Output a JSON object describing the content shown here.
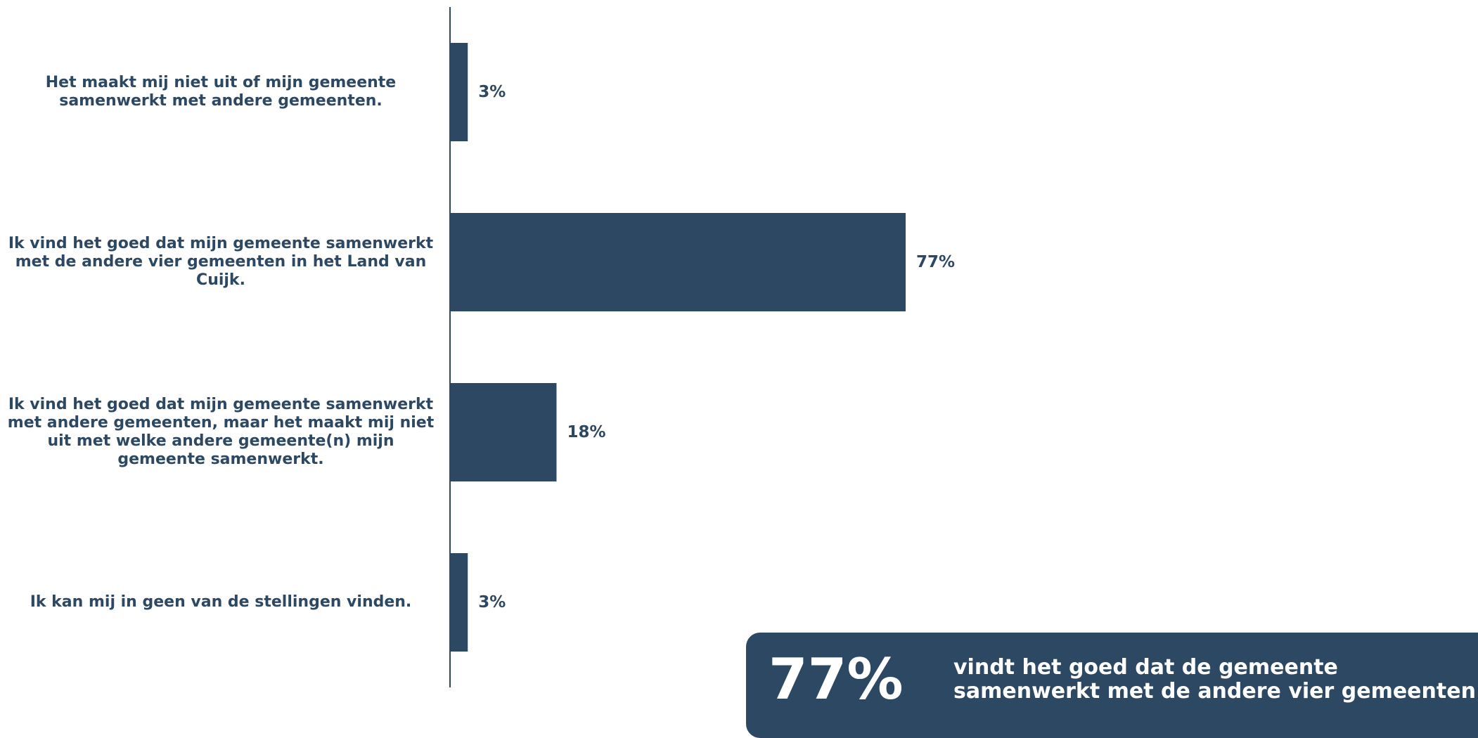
{
  "colors": {
    "bar": "#2d4862",
    "text": "#2d4862",
    "callout_bg": "#2d4862",
    "callout_text": "#ffffff",
    "background": "#ffffff"
  },
  "chart_data": {
    "type": "bar",
    "orientation": "horizontal",
    "title": "",
    "xlabel": "",
    "ylabel": "",
    "xlim": [
      0,
      100
    ],
    "grid": false,
    "legend": "none",
    "categories": [
      "Het maakt mij niet uit of mijn gemeente samenwerkt met andere gemeenten.",
      "Ik vind het goed dat mijn gemeente samenwerkt met de andere vier gemeenten in het Land van Cuijk.",
      "Ik vind het goed dat mijn gemeente samenwerkt met andere gemeenten, maar het maakt mij niet uit met welke andere gemeente(n) mijn gemeente samenwerkt.",
      "Ik kan mij in geen van de stellingen vinden."
    ],
    "values": [
      3,
      77,
      18,
      3
    ],
    "value_labels": [
      "3%",
      "77%",
      "18%",
      "3%"
    ]
  },
  "callout": {
    "value": "77%",
    "text": "vindt het goed dat de gemeente samenwerkt met de andere vier gemeenten"
  }
}
